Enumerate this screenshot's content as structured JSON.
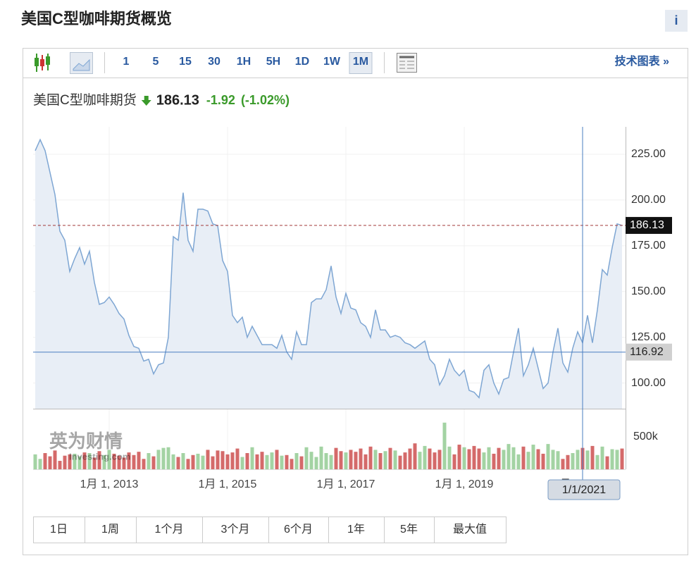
{
  "header": {
    "title": "美国C型咖啡期货概览",
    "info": "i"
  },
  "toolbar": {
    "intervals": [
      "1",
      "5",
      "15",
      "30",
      "1H",
      "5H",
      "1D",
      "1W",
      "1M"
    ],
    "selected": 8,
    "link": "技术图表 »"
  },
  "quote": {
    "name": "美国C型咖啡期货",
    "last": "186.13",
    "change": "-1.92",
    "change_pct": "(-1.02%)",
    "color": "#3a9a2a"
  },
  "watermark": {
    "cn": "英为财情",
    "en": "Investing.com"
  },
  "ranges": [
    "1日",
    "1周",
    "1个月",
    "3个月",
    "6个月",
    "1年",
    "5年",
    "最大值"
  ],
  "chart_data": [
    {
      "type": "line",
      "color": "#7ea6d3",
      "fill": "#e8eef6",
      "values": [
        227,
        233,
        227,
        215,
        203,
        183,
        178,
        161,
        168,
        174,
        165,
        172,
        155,
        143,
        144,
        147,
        143,
        138,
        135,
        126,
        120,
        119,
        112,
        113,
        105,
        110,
        111,
        125,
        180,
        178,
        204,
        178,
        172,
        195,
        195,
        194,
        187,
        186,
        167,
        161,
        137,
        133,
        136,
        125,
        131,
        126,
        121,
        121,
        121,
        119,
        126,
        117,
        113,
        128,
        121,
        121,
        144,
        146,
        146,
        151,
        164,
        147,
        138,
        149,
        141,
        140,
        133,
        131,
        125,
        140,
        129,
        129,
        125,
        126,
        125,
        122,
        121,
        119,
        121,
        123,
        113,
        110,
        99,
        104,
        113,
        107,
        104,
        107,
        96,
        95,
        92,
        107,
        110,
        100,
        94,
        102,
        103,
        117,
        130,
        104,
        110,
        119,
        108,
        97,
        100,
        117,
        130,
        111,
        106,
        119,
        128,
        122,
        137,
        122,
        140,
        162,
        159,
        174,
        187,
        186.13
      ],
      "xlim": [
        0,
        119
      ],
      "xticks": [
        {
          "value": 15,
          "label": "1月 1, 2013"
        },
        {
          "value": 39,
          "label": "1月 1, 2015"
        },
        {
          "value": 63,
          "label": "1月 1, 2017"
        },
        {
          "value": 87,
          "label": "1月 1, 2019"
        },
        {
          "value": 111,
          "label": "1月 1, 2021"
        }
      ],
      "ylim": [
        86,
        240
      ],
      "yticks": [
        {
          "value": 100,
          "label": "100.00"
        },
        {
          "value": 125,
          "label": "125.00"
        },
        {
          "value": 150,
          "label": "150.00"
        },
        {
          "value": 175,
          "label": "175.00"
        },
        {
          "value": 200,
          "label": "200.00"
        },
        {
          "value": 225,
          "label": "225.00"
        }
      ],
      "grid": true,
      "last_line": {
        "value": 186.13,
        "color": "#a33a3a"
      },
      "crosshair": {
        "x": 111,
        "x_label": "1/1/2021",
        "y": 116.92,
        "color": "#4a7fc1"
      }
    },
    {
      "type": "bar",
      "up_color": "#a3d3a3",
      "down_color": "#d46a6a",
      "values": [
        230000,
        160000,
        250000,
        200000,
        290000,
        130000,
        210000,
        230000,
        240000,
        200000,
        260000,
        250000,
        180000,
        280000,
        220000,
        300000,
        240000,
        210000,
        180000,
        260000,
        220000,
        270000,
        160000,
        250000,
        200000,
        300000,
        330000,
        340000,
        230000,
        190000,
        250000,
        160000,
        220000,
        240000,
        210000,
        300000,
        200000,
        290000,
        280000,
        230000,
        260000,
        320000,
        190000,
        250000,
        340000,
        230000,
        270000,
        220000,
        260000,
        300000,
        210000,
        220000,
        160000,
        250000,
        200000,
        340000,
        270000,
        190000,
        350000,
        250000,
        220000,
        330000,
        280000,
        260000,
        300000,
        270000,
        320000,
        230000,
        350000,
        300000,
        250000,
        280000,
        330000,
        290000,
        210000,
        260000,
        320000,
        400000,
        270000,
        360000,
        320000,
        260000,
        300000,
        720000,
        350000,
        230000,
        380000,
        340000,
        310000,
        360000,
        320000,
        260000,
        340000,
        240000,
        330000,
        300000,
        390000,
        340000,
        230000,
        350000,
        270000,
        380000,
        310000,
        240000,
        390000,
        300000,
        280000,
        160000,
        220000,
        250000,
        300000,
        330000,
        290000,
        360000,
        220000,
        350000,
        200000,
        310000,
        300000,
        320000
      ],
      "ylim": [
        0,
        935000
      ],
      "yticks": [
        {
          "value": 500000,
          "label": "500k"
        }
      ]
    }
  ]
}
